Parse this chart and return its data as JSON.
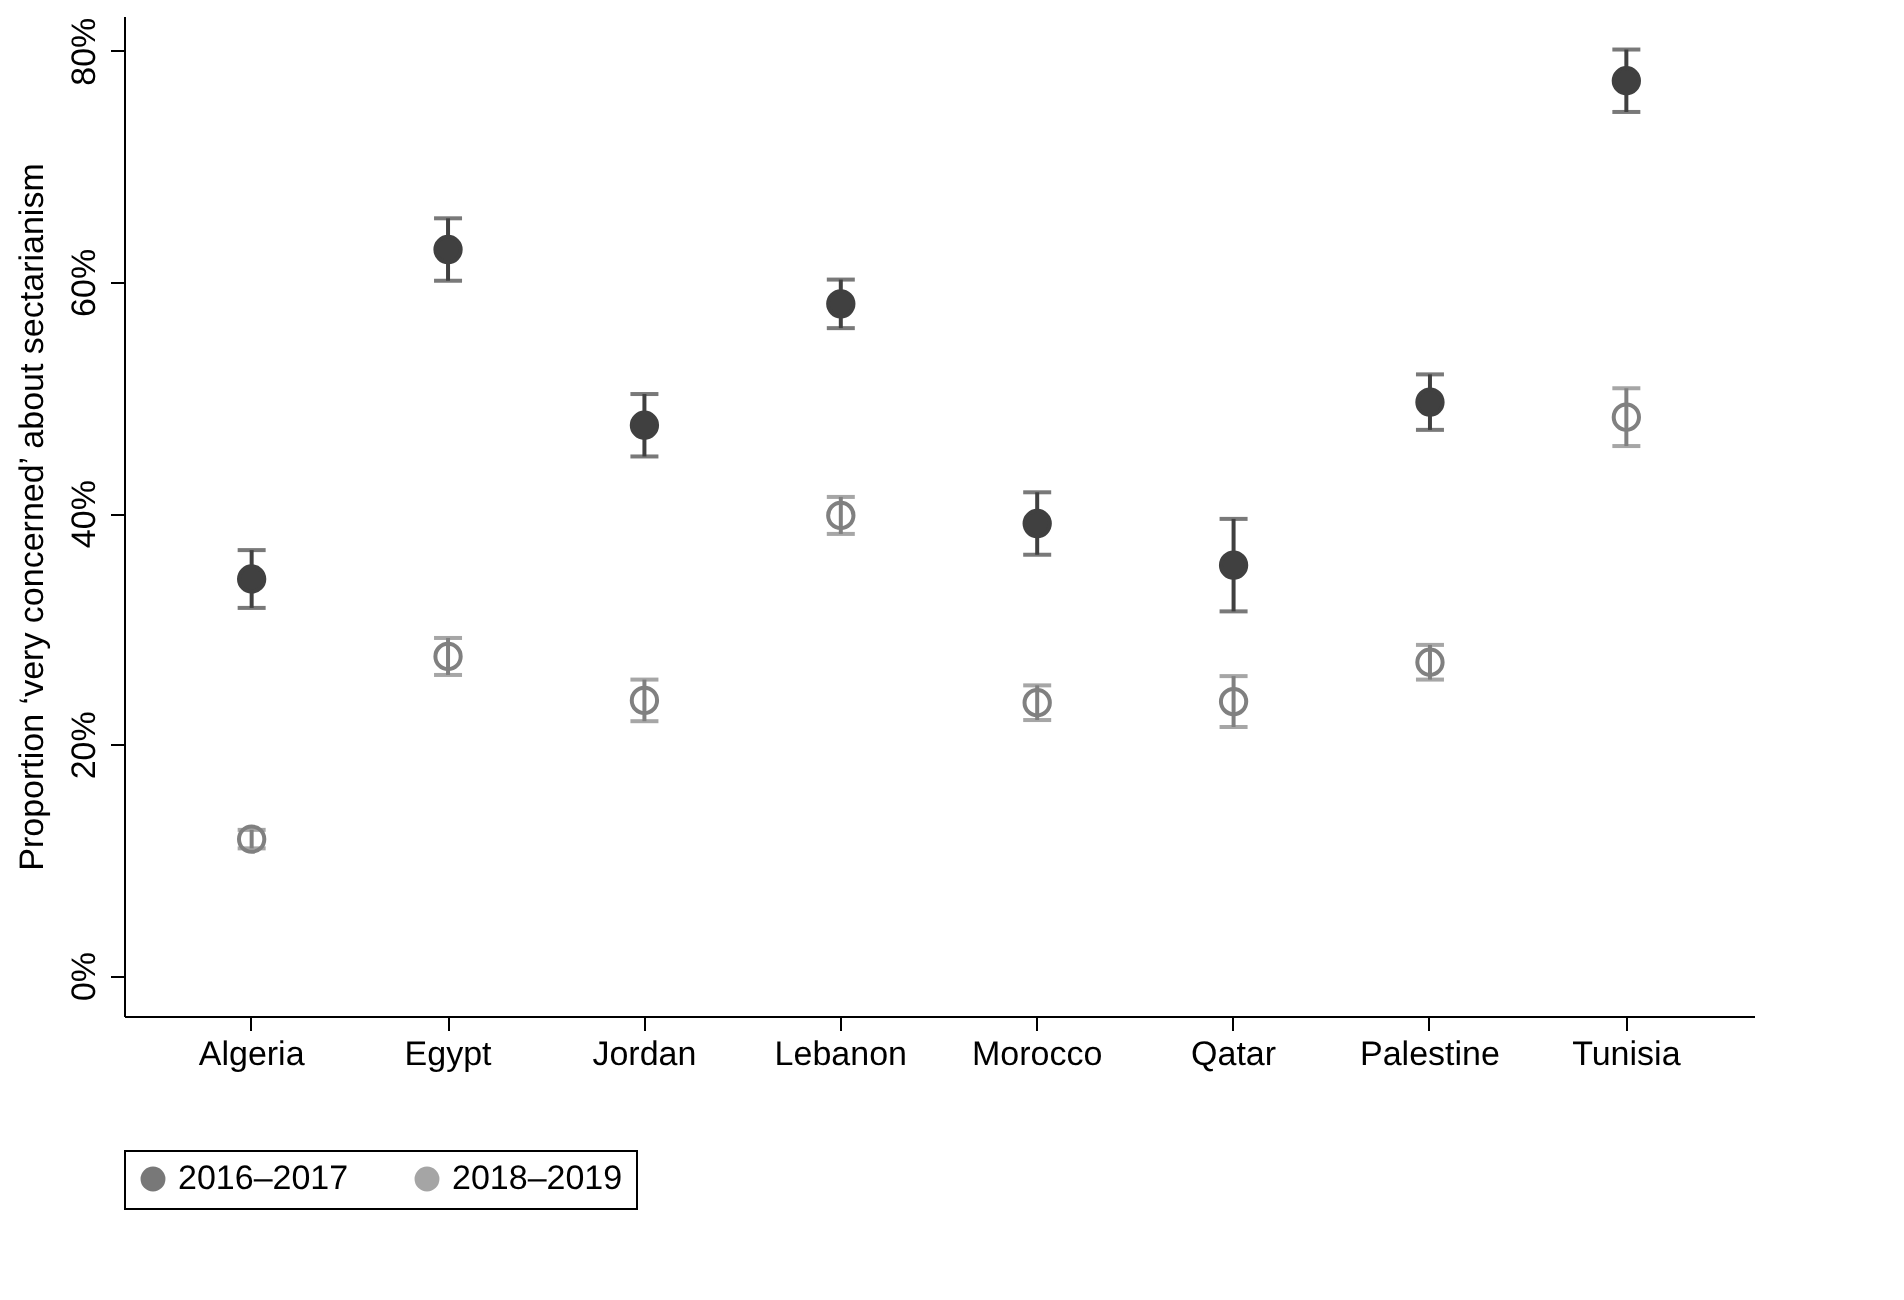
{
  "chart_data": {
    "type": "scatter",
    "ylabel": "Proportion ‘very concerned’ about sectarianism",
    "categories": [
      "Algeria",
      "Egypt",
      "Jordan",
      "Lebanon",
      "Morocco",
      "Qatar",
      "Palestine",
      "Tunisia"
    ],
    "series": [
      {
        "name": "2016–2017",
        "color": "#404040",
        "values": [
          34.3,
          62.8,
          47.6,
          58.1,
          39.1,
          35.5,
          49.6,
          77.4
        ],
        "errors": [
          2.5,
          2.7,
          2.7,
          2.1,
          2.7,
          4.0,
          2.4,
          2.7
        ]
      },
      {
        "name": "2018–2019",
        "color": "#808080",
        "values": [
          11.8,
          27.6,
          23.8,
          39.8,
          23.6,
          23.7,
          27.1,
          48.3
        ],
        "errors": [
          0.8,
          1.6,
          1.8,
          1.6,
          1.5,
          2.2,
          1.5,
          2.5
        ]
      }
    ],
    "ylim": [
      -3.5,
      83
    ],
    "yticks": [
      {
        "value": 0,
        "label": "0%"
      },
      {
        "value": 20,
        "label": "20%"
      },
      {
        "value": 40,
        "label": "40%"
      },
      {
        "value": 60,
        "label": "60%"
      },
      {
        "value": 80,
        "label": "80%"
      }
    ],
    "grid": false,
    "legend": "bottom",
    "marker": "circle"
  }
}
